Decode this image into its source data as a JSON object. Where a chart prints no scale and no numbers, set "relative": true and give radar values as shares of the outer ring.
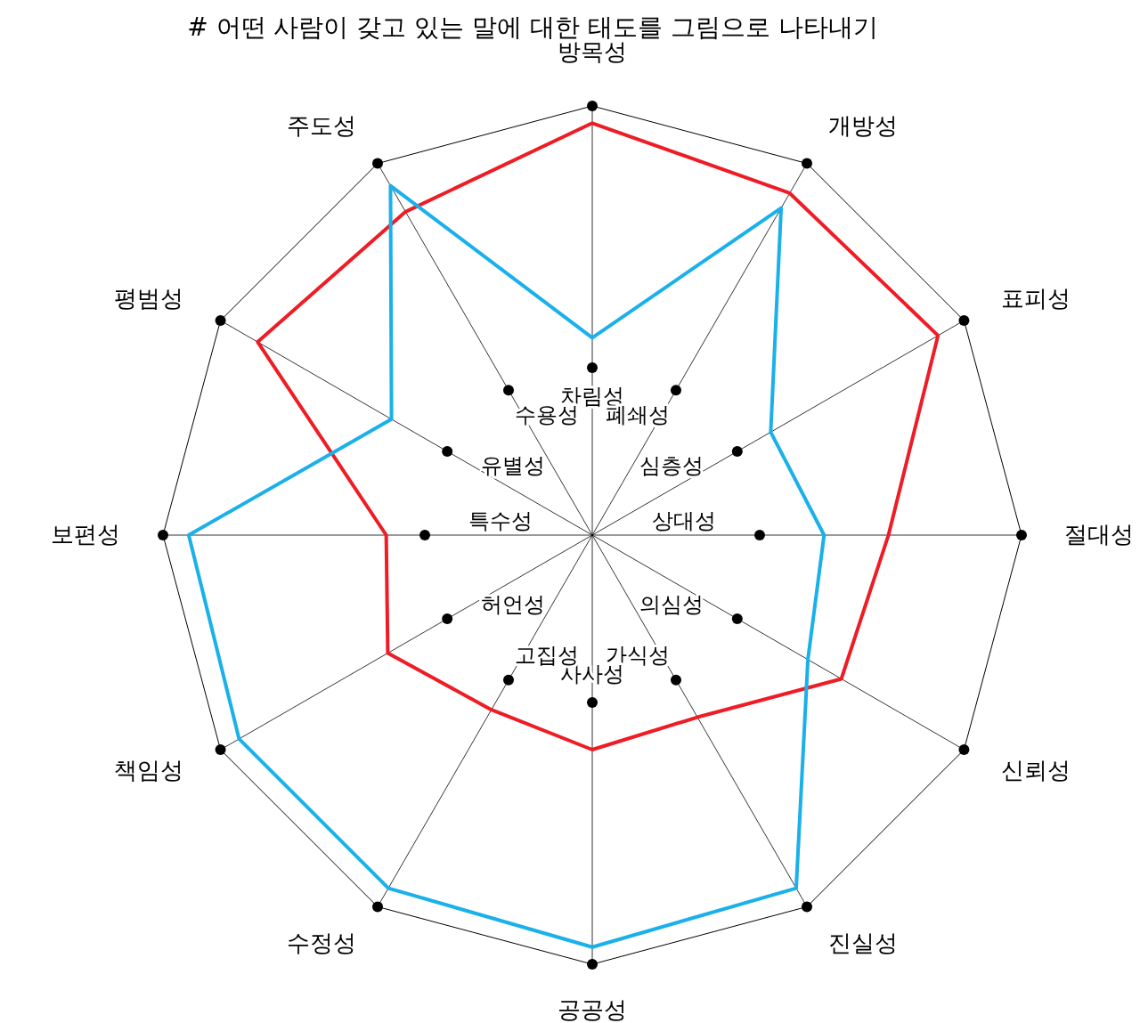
{
  "chart_data": {
    "type": "radar",
    "title": "# 어떤 사람이 갖고 있는 말에 대한 태도를 그림으로 나타내기",
    "relative": true,
    "marker": "none",
    "line_style": "solid",
    "categories": [
      "방목성",
      "개방성",
      "표피성",
      "절대성",
      "신뢰성",
      "진실성",
      "공공성",
      "수정성",
      "책임성",
      "보편성",
      "평범성",
      "주도성"
    ],
    "series": [
      {
        "color": "#ee1c25",
        "values": [
          0.96,
          0.92,
          0.93,
          0.69,
          0.67,
          0.49,
          0.5,
          0.47,
          0.55,
          0.48,
          0.9,
          0.87
        ]
      },
      {
        "color": "#1ab0ea",
        "values": [
          0.46,
          0.88,
          0.48,
          0.54,
          0.58,
          0.95,
          0.96,
          0.95,
          0.95,
          0.94,
          0.54,
          0.94
        ]
      }
    ],
    "annotations": [
      {
        "text": "차림성",
        "x": "방목성"
      },
      {
        "text": "폐쇄성",
        "x": "개방성"
      },
      {
        "text": "심층성",
        "x": "표피성"
      },
      {
        "text": "상대성",
        "x": "절대성"
      },
      {
        "text": "의심성",
        "x": "신뢰성"
      },
      {
        "text": "가식성",
        "x": "진실성"
      },
      {
        "text": "사사성",
        "x": "공공성"
      },
      {
        "text": "고집성",
        "x": "수정성"
      },
      {
        "text": "허언성",
        "x": "책임성"
      },
      {
        "text": "특수성",
        "x": "보편성"
      },
      {
        "text": "유별성",
        "x": "평범성"
      },
      {
        "text": "수용성",
        "x": "주도성"
      }
    ]
  }
}
